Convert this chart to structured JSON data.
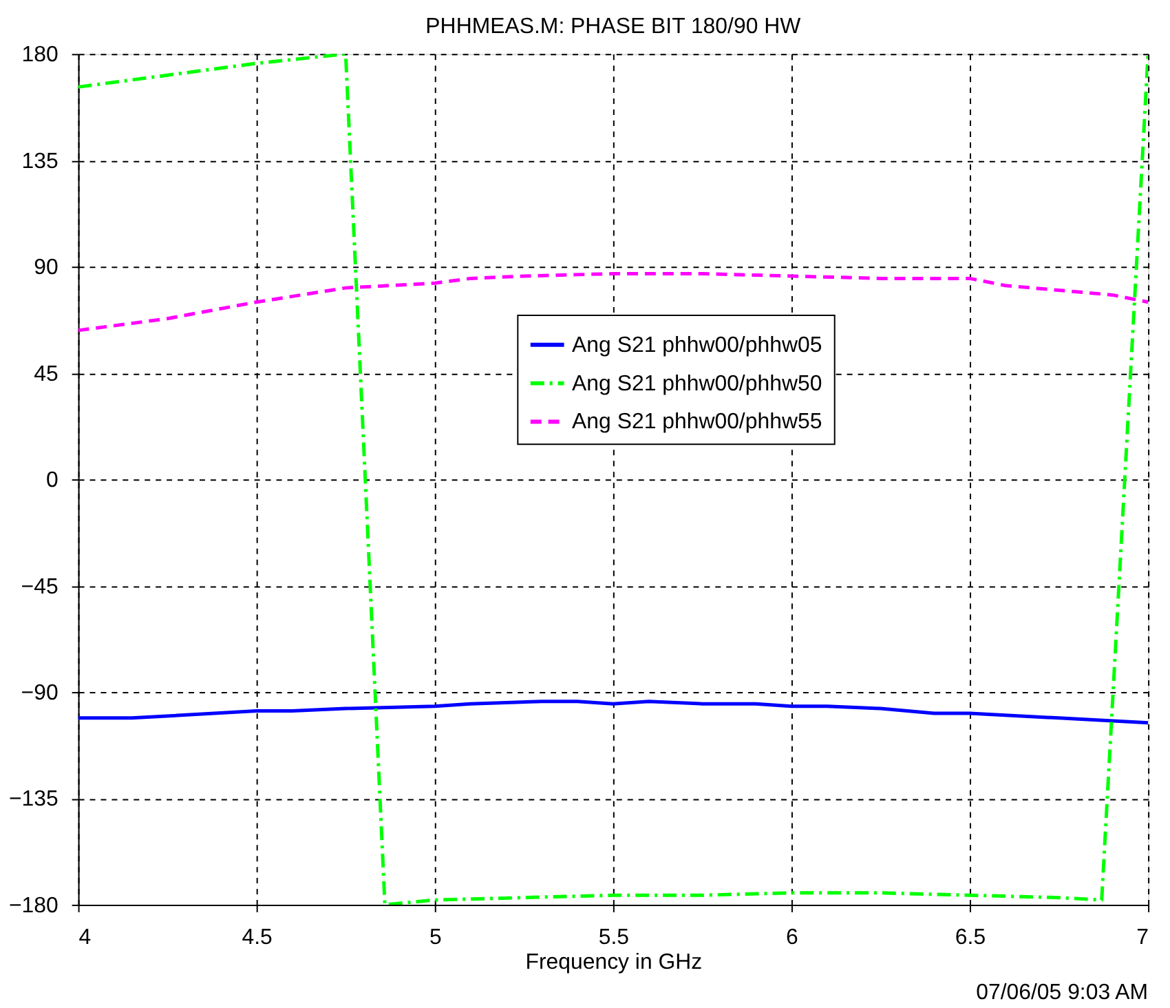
{
  "chart_data": {
    "type": "line",
    "title": "PHHMEAS.M:  PHASE BIT 180/90 HW",
    "xlabel": "Frequency in GHz",
    "annotations": [
      "07/06/05  9:03 AM"
    ],
    "xlim": [
      4,
      7
    ],
    "xticks": [
      4,
      4.5,
      5,
      5.5,
      6,
      6.5,
      7
    ],
    "ylim": [
      -180,
      180
    ],
    "yticks": [
      -180,
      -135,
      -90,
      -45,
      0,
      45,
      90,
      135,
      180
    ],
    "grid": true,
    "legend": "right",
    "marker": "none",
    "series": [
      {
        "name": "Ang S21 phhw00/phhw05",
        "color": "#0000ff",
        "line_style": "solid",
        "x": [
          4,
          4.15,
          4.5,
          4.6,
          4.75,
          5,
          5.1,
          5.3,
          5.4,
          5.5,
          5.6,
          5.75,
          5.9,
          6,
          6.1,
          6.25,
          6.4,
          6.5,
          6.75,
          7
        ],
        "values": [
          -101,
          -101,
          -98,
          -98,
          -97,
          -96,
          -95,
          -94,
          -94,
          -95,
          -94,
          -95,
          -95,
          -96,
          -96,
          -97,
          -99,
          -99,
          -101,
          -103
        ]
      },
      {
        "name": "Ang S21 phhw00/phhw50",
        "color": "#00ff00",
        "line_style": "dashdot",
        "x": [
          4,
          4.25,
          4.5,
          4.75,
          4.86,
          5,
          5.25,
          5.5,
          5.75,
          6,
          6.25,
          6.5,
          6.75,
          6.87,
          7
        ],
        "values": [
          166,
          171,
          176,
          180,
          -180,
          -178,
          -177,
          -176,
          -176,
          -175,
          -175,
          -176,
          -177,
          -178,
          180
        ]
      },
      {
        "name": "Ang S21 phhw00/phhw55",
        "color": "#ff00ff",
        "line_style": "dashed",
        "x": [
          4,
          4.25,
          4.5,
          4.75,
          5,
          5.1,
          5.25,
          5.5,
          5.75,
          6,
          6.25,
          6.5,
          6.6,
          6.9,
          7
        ],
        "values": [
          63,
          68,
          75,
          81,
          83,
          85,
          86,
          87,
          87,
          86,
          85,
          85,
          82,
          78,
          75
        ]
      }
    ]
  }
}
